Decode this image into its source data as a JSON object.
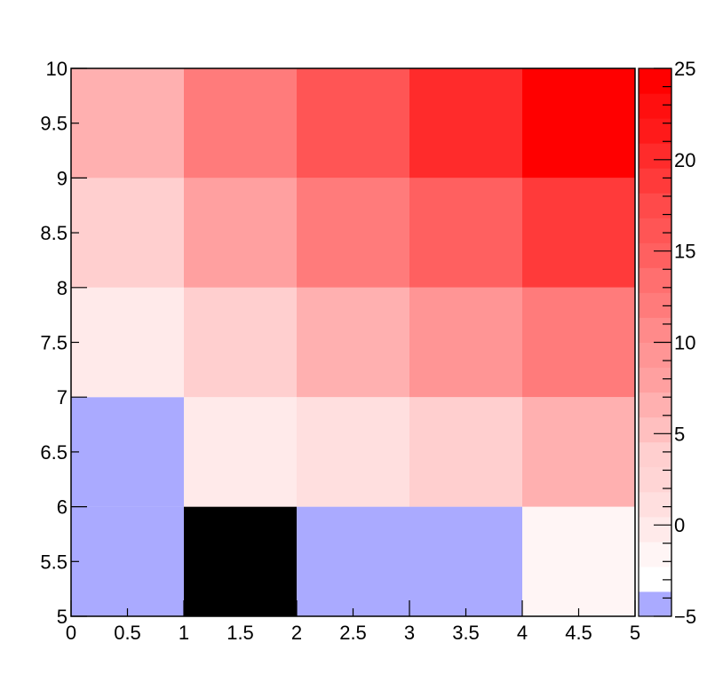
{
  "chart_data": {
    "type": "heatmap",
    "x_edges": [
      0,
      1,
      2,
      3,
      4,
      5
    ],
    "y_edges": [
      5,
      6,
      7,
      8,
      9,
      10
    ],
    "xlim": [
      0,
      5
    ],
    "ylim": [
      5,
      10
    ],
    "x_ticks": [
      "0",
      "0.5",
      "1",
      "1.5",
      "2",
      "2.5",
      "3",
      "3.5",
      "4",
      "4.5",
      "5"
    ],
    "y_ticks": [
      "5",
      "5.5",
      "6",
      "6.5",
      "7",
      "7.5",
      "8",
      "8.5",
      "9",
      "9.5",
      "10"
    ],
    "cells_by_row_from_bottom": [
      {
        "y_range": [
          5,
          6
        ],
        "colors": [
          "#aaaaff",
          "#000000",
          "#aaaaff",
          "#aaaaff",
          "#fff5f5"
        ]
      },
      {
        "y_range": [
          6,
          7
        ],
        "colors": [
          "#aaaaff",
          "#ffeaea",
          "#ffdfdf",
          "#ffcfcf",
          "#ffb0b0"
        ]
      },
      {
        "y_range": [
          7,
          8
        ],
        "colors": [
          "#ffeaea",
          "#ffcfcf",
          "#ffb0b0",
          "#ff9595",
          "#ff7b7b"
        ]
      },
      {
        "y_range": [
          8,
          9
        ],
        "colors": [
          "#ffcfcf",
          "#ffa0a0",
          "#ff7b7b",
          "#ff6060",
          "#ff3a3a"
        ]
      },
      {
        "y_range": [
          9,
          10
        ],
        "colors": [
          "#ffb0b0",
          "#ff7b7b",
          "#ff5555",
          "#ff2b2b",
          "#ff0000"
        ]
      }
    ],
    "colorbar": {
      "zlim": [
        -5,
        25
      ],
      "tick_labels": [
        "25",
        "20",
        "15",
        "10",
        "5",
        "0",
        "-5"
      ],
      "tick_values": [
        25,
        20,
        15,
        10,
        5,
        0,
        -5
      ],
      "band_colors_bottom_to_top": [
        "#aaaaff",
        "#ffffff",
        "#fff5f5",
        "#ffeaea",
        "#ffdfdf",
        "#ffd5d5",
        "#ffcfcf",
        "#ffbfbf",
        "#ffb0b0",
        "#ffa0a0",
        "#ff9595",
        "#ff8a8a",
        "#ff7b7b",
        "#ff6f6f",
        "#ff6060",
        "#ff5555",
        "#ff4a4a",
        "#ff3a3a",
        "#ff2b2b",
        "#ff1a1a",
        "#ff0f0f",
        "#ff0000"
      ]
    },
    "title": "",
    "xlabel": "",
    "ylabel": "",
    "grid": false,
    "legend": "none"
  }
}
